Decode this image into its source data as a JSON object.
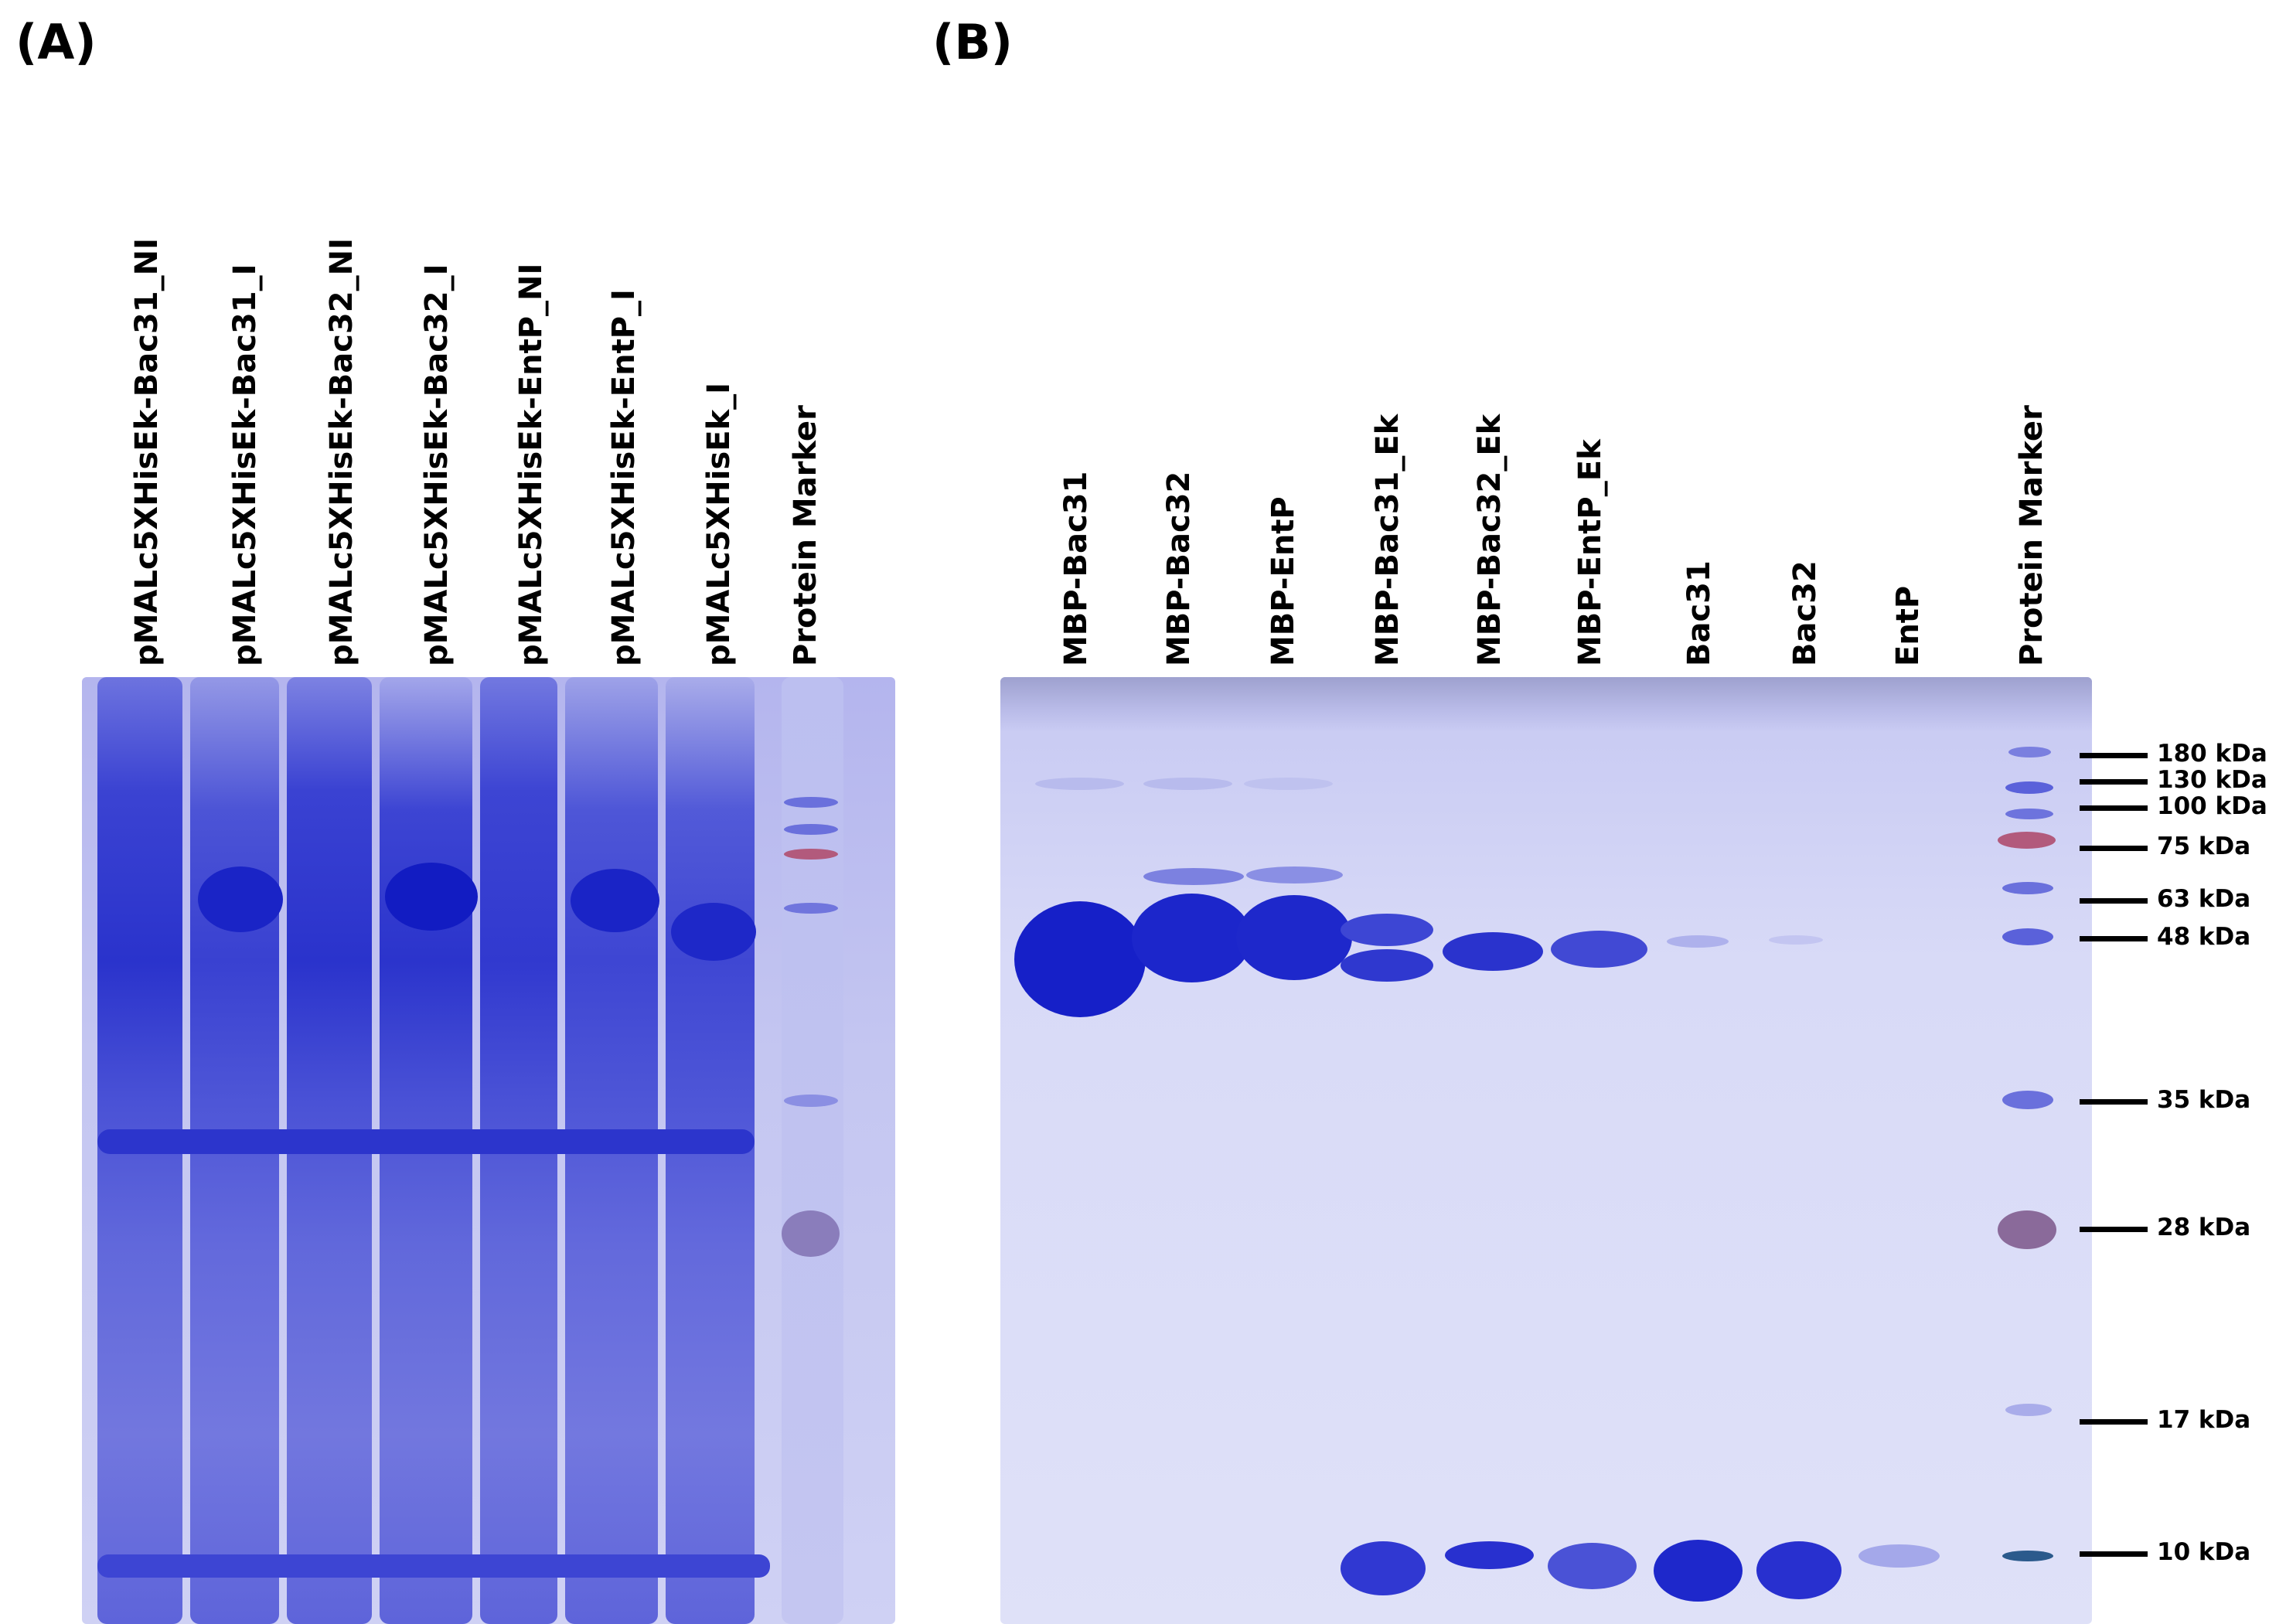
{
  "panel_a": {
    "letter": "(A)",
    "lanes": [
      "pMALc5XHisEk-Bac31_NI",
      "pMALc5XHisEk-Bac31_I",
      "pMALc5XHisEk-Bac32_NI",
      "pMALc5XHisEk-Bac32_I",
      "pMALc5XHisEk-EntP_NI",
      "pMALc5XHisEk-EntP_I",
      "pMALc5XHisEk_I",
      "Protein Marker"
    ]
  },
  "panel_b": {
    "letter": "(B)",
    "lanes": [
      "MBP-Bac31",
      "MBP-Bac32",
      "MBP-EntP",
      "MBP-Bac31_Ek",
      "MBP-Bac32_Ek",
      "MBP-EntP_Ek",
      "Bac31",
      "Bac32",
      "EntP",
      "Protein Marker"
    ],
    "markers": [
      "180 kDa",
      "130 kDa",
      "100 kDa",
      "75 kDa",
      "63 kDa",
      "48 kDa",
      "35 kDa",
      "28 kDa",
      "17 kDa",
      "10 kDa"
    ]
  },
  "colors": {
    "gel_background": "#c8caf2",
    "stain_strong": "#1a22c8",
    "stain_medium": "#5058d6",
    "stain_light": "#9da1e6",
    "marker_prestained_red": "#b25a7c"
  }
}
